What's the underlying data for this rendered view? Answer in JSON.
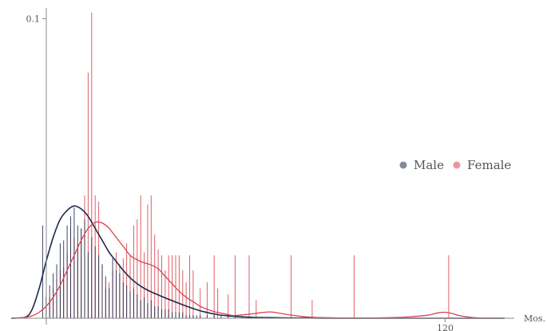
{
  "colors": {
    "male": "#1b2a4a",
    "female": "#d9424f",
    "axis": "#888888"
  },
  "chart_data": {
    "type": "line",
    "title": "",
    "xlabel": "Mos.",
    "ylabel": "",
    "xlim": [
      -4,
      137
    ],
    "ylim": [
      0,
      0.102
    ],
    "xticks": [
      {
        "value": 120,
        "label": "120"
      }
    ],
    "yticks": [
      {
        "value": 0.1,
        "label": "0.1"
      }
    ],
    "legend": {
      "position": "right",
      "entries": [
        "Male",
        "Female"
      ]
    },
    "series": [
      {
        "name": "Male",
        "color": "#1b2a4a",
        "kde": {
          "x": [
            -4,
            0,
            2,
            4,
            6,
            8,
            10,
            12,
            14,
            16,
            18,
            20,
            22,
            24,
            26,
            28,
            30,
            32,
            34,
            36,
            38,
            40,
            45,
            50,
            55,
            60,
            65,
            70,
            75,
            80,
            85,
            90,
            100,
            110,
            120,
            130,
            137
          ],
          "y": [
            0,
            0.0003,
            0.003,
            0.01,
            0.019,
            0.027,
            0.033,
            0.036,
            0.0375,
            0.0365,
            0.034,
            0.03,
            0.026,
            0.022,
            0.019,
            0.016,
            0.0135,
            0.0115,
            0.01,
            0.0088,
            0.0078,
            0.0068,
            0.0045,
            0.0025,
            0.0012,
            0.0006,
            0.0003,
            0.0002,
            0.0001,
            0.0001,
            0,
            0,
            0,
            0,
            0,
            0,
            0
          ]
        },
        "spikes": {
          "x": [
            5,
            6,
            7,
            8,
            9,
            10,
            11,
            12,
            13,
            14,
            15,
            16,
            17,
            18,
            19,
            20,
            21,
            22,
            23,
            24,
            25,
            26,
            27,
            28,
            29,
            30,
            31,
            32,
            33,
            34,
            35,
            36,
            37,
            38,
            39,
            40,
            41,
            42,
            43,
            44,
            45,
            46,
            47,
            48,
            49,
            50,
            52,
            54,
            56,
            58,
            60,
            62,
            64,
            66,
            68,
            70,
            72,
            74,
            76,
            78,
            80
          ],
          "y": [
            0.031,
            0.007,
            0.011,
            0.015,
            0.018,
            0.025,
            0.026,
            0.031,
            0.034,
            0.037,
            0.031,
            0.03,
            0.033,
            0.022,
            0.027,
            0.024,
            0.021,
            0.018,
            0.014,
            0.01,
            0.02,
            0.016,
            0.015,
            0.012,
            0.011,
            0.009,
            0.01,
            0.008,
            0.006,
            0.007,
            0.005,
            0.006,
            0.004,
            0.004,
            0.003,
            0.003,
            0.003,
            0.002,
            0.002,
            0.002,
            0.002,
            0.001,
            0.001,
            0.001,
            0.001,
            0.001,
            0.001,
            0.001,
            0.0008,
            0.0008,
            0.0006,
            0.0006,
            0.0005,
            0.0005,
            0.0004,
            0.0004,
            0.0003,
            0.0003,
            0.0003,
            0.0002,
            0.0002
          ]
        }
      },
      {
        "name": "Female",
        "color": "#d9424f",
        "kde": {
          "x": [
            -4,
            0,
            2,
            4,
            6,
            8,
            10,
            12,
            14,
            16,
            18,
            20,
            22,
            24,
            26,
            28,
            30,
            32,
            34,
            36,
            38,
            40,
            42,
            44,
            46,
            48,
            50,
            52,
            54,
            56,
            58,
            60,
            65,
            70,
            75,
            80,
            85,
            90,
            95,
            100,
            105,
            110,
            115,
            118,
            120,
            122,
            124,
            128,
            132,
            137
          ],
          "y": [
            0,
            0.0003,
            0.0008,
            0.002,
            0.004,
            0.007,
            0.011,
            0.016,
            0.021,
            0.026,
            0.03,
            0.032,
            0.0318,
            0.03,
            0.027,
            0.024,
            0.021,
            0.0195,
            0.0185,
            0.0178,
            0.0165,
            0.014,
            0.0115,
            0.009,
            0.007,
            0.0055,
            0.004,
            0.003,
            0.0022,
            0.0017,
            0.0012,
            0.0009,
            0.0015,
            0.0021,
            0.0012,
            0.0005,
            0.0002,
            0.0001,
            0.0001,
            0.0001,
            0.0002,
            0.0005,
            0.001,
            0.0018,
            0.002,
            0.0016,
            0.0009,
            0.0002,
            0,
            0
          ]
        },
        "spikes": {
          "x": [
            6,
            7,
            8,
            9,
            10,
            11,
            12,
            13,
            14,
            15,
            16,
            17,
            18,
            19,
            20,
            21,
            22,
            23,
            24,
            25,
            26,
            27,
            28,
            29,
            30,
            31,
            32,
            33,
            34,
            35,
            36,
            37,
            38,
            39,
            40,
            41,
            42,
            43,
            44,
            45,
            46,
            47,
            48,
            50,
            52,
            54,
            55,
            58,
            60,
            64,
            66,
            76,
            82,
            94,
            121
          ],
          "y": [
            0.008,
            0.007,
            0.01,
            0.013,
            0.016,
            0.017,
            0.022,
            0.03,
            0.027,
            0.025,
            0.03,
            0.041,
            0.082,
            0.102,
            0.041,
            0.039,
            0.018,
            0.01,
            0.012,
            0.016,
            0.022,
            0.018,
            0.02,
            0.025,
            0.021,
            0.031,
            0.033,
            0.041,
            0.022,
            0.038,
            0.041,
            0.028,
            0.023,
            0.021,
            0.016,
            0.021,
            0.021,
            0.021,
            0.021,
            0.016,
            0.012,
            0.021,
            0.016,
            0.01,
            0.012,
            0.021,
            0.01,
            0.008,
            0.021,
            0.021,
            0.006,
            0.021,
            0.006,
            0.021,
            0.021
          ]
        }
      }
    ]
  }
}
